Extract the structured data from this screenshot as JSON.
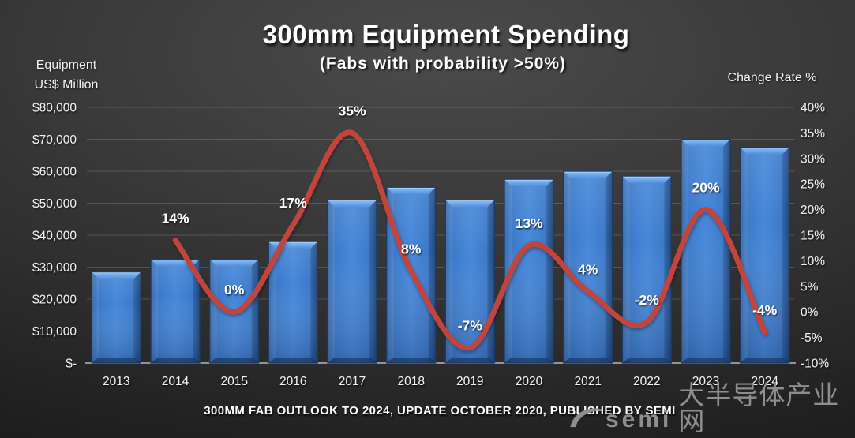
{
  "chart_data": {
    "type": "combo-bar-line",
    "title": "300mm Equipment Spending",
    "subtitle": "(Fabs with probability >50%)",
    "footer": "300MM FAB OUTLOOK TO 2024, UPDATE OCTOBER 2020, PUBLISHED BY SEMI",
    "categories": [
      "2013",
      "2014",
      "2015",
      "2016",
      "2017",
      "2018",
      "2019",
      "2020",
      "2021",
      "2022",
      "2023",
      "2024"
    ],
    "series": [
      {
        "name": "Equipment Spending",
        "type": "bar",
        "units": "US$ Million",
        "color": "#3c7ccb",
        "values": [
          28500,
          32500,
          32500,
          38000,
          51000,
          55000,
          51000,
          57500,
          60000,
          58500,
          70000,
          67500
        ]
      },
      {
        "name": "Change Rate",
        "type": "line",
        "units": "%",
        "color": "#c2453e",
        "start_index": 1,
        "values": [
          14,
          0,
          17,
          35,
          8,
          -7,
          13,
          4,
          -2,
          20,
          -4
        ],
        "labels": [
          "14%",
          "0%",
          "17%",
          "35%",
          "8%",
          "-7%",
          "13%",
          "4%",
          "-2%",
          "20%",
          "-4%"
        ]
      }
    ],
    "left_axis": {
      "title_lines": [
        "Equipment",
        "US$ Million"
      ],
      "min": 0,
      "max": 80000,
      "tick_step": 10000,
      "ticks": [
        "$80,000",
        "$70,000",
        "$60,000",
        "$50,000",
        "$40,000",
        "$30,000",
        "$20,000",
        "$10,000",
        "$-"
      ]
    },
    "right_axis": {
      "title": "Change Rate %",
      "min": -10,
      "max": 40,
      "tick_step": 5,
      "ticks": [
        "40%",
        "35%",
        "30%",
        "25%",
        "20%",
        "15%",
        "10%",
        "5%",
        "0%",
        "-5%",
        "-10%"
      ]
    },
    "grid": "horizontal",
    "legend": "none",
    "label_color": "#ffffff"
  },
  "watermark": {
    "latin": "semi",
    "chinese": "大半导体产业网",
    "color": "#8e8e8e"
  }
}
